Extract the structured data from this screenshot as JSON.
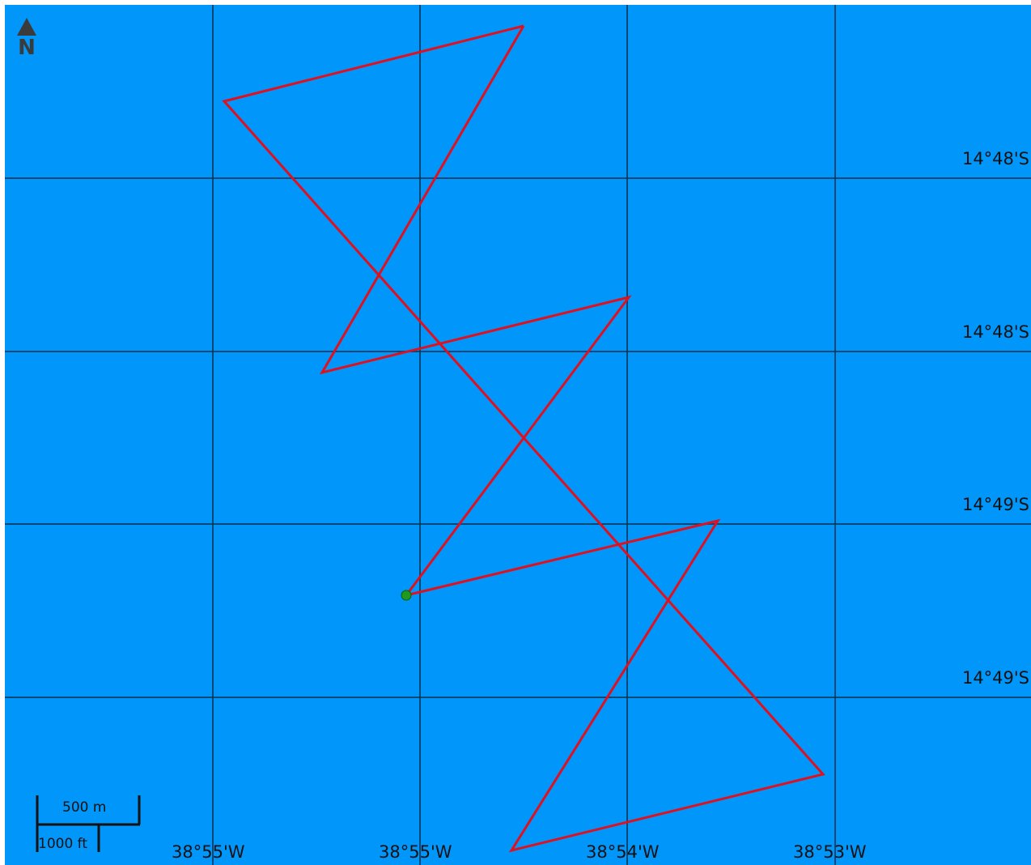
{
  "map": {
    "north_label": "N",
    "colors": {
      "water": "#0096fa",
      "grid": "#0a3a5c",
      "track": "#e0101e",
      "start_marker": "#1f9a1f"
    },
    "lat_labels": [
      "14°48'S",
      "14°48'S",
      "14°49'S",
      "14°49'S"
    ],
    "lon_labels": [
      "38°55'W",
      "38°55'W",
      "38°54'W",
      "38°53'W"
    ],
    "scale": {
      "metric_label": "500 m",
      "imperial_label": "1000 ft"
    },
    "track_description_icon": "north-arrow-icon"
  }
}
